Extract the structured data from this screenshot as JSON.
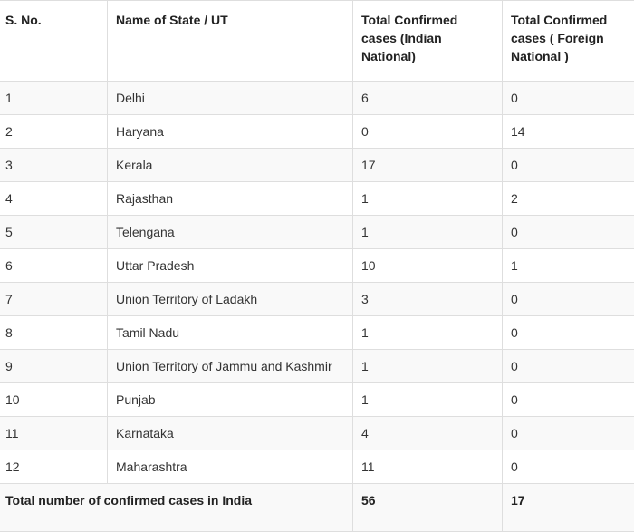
{
  "table": {
    "headers": {
      "sno": "S. No.",
      "state": "Name of State / UT",
      "indian": "Total Confirmed cases (Indian National)",
      "foreign": "Total Confirmed cases ( Foreign National )"
    },
    "rows": [
      {
        "sno": "1",
        "state": "Delhi",
        "indian": "6",
        "foreign": "0"
      },
      {
        "sno": "2",
        "state": "Haryana",
        "indian": "0",
        "foreign": "14"
      },
      {
        "sno": "3",
        "state": "Kerala",
        "indian": "17",
        "foreign": "0"
      },
      {
        "sno": "4",
        "state": "Rajasthan",
        "indian": "1",
        "foreign": "2"
      },
      {
        "sno": "5",
        "state": "Telengana",
        "indian": "1",
        "foreign": "0"
      },
      {
        "sno": "6",
        "state": "Uttar Pradesh",
        "indian": "10",
        "foreign": "1"
      },
      {
        "sno": "7",
        "state": "Union Territory of Ladakh",
        "indian": "3",
        "foreign": "0"
      },
      {
        "sno": "8",
        "state": "Tamil Nadu",
        "indian": "1",
        "foreign": "0"
      },
      {
        "sno": "9",
        "state": "Union Territory of Jammu and Kashmir",
        "indian": "1",
        "foreign": "0"
      },
      {
        "sno": "10",
        "state": "Punjab",
        "indian": "1",
        "foreign": "0"
      },
      {
        "sno": "11",
        "state": "Karnataka",
        "indian": "4",
        "foreign": "0"
      },
      {
        "sno": "12",
        "state": "Maharashtra",
        "indian": "11",
        "foreign": "0"
      }
    ],
    "total": {
      "label": "Total number of confirmed cases in India",
      "indian": "56",
      "foreign": "17"
    }
  }
}
